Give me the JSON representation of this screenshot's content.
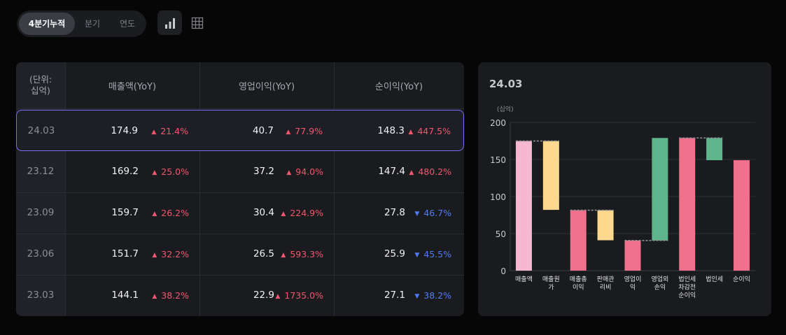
{
  "toolbar": {
    "tabs": [
      {
        "label": "4분기누적",
        "active": true
      },
      {
        "label": "분기",
        "active": false
      },
      {
        "label": "연도",
        "active": false
      }
    ],
    "view_icons": [
      {
        "name": "bar-chart-icon",
        "active": true
      },
      {
        "name": "table-grid-icon",
        "active": false
      }
    ]
  },
  "table": {
    "unit_header": [
      "(단위:",
      "십억)"
    ],
    "columns": [
      "매출액(YoY)",
      "영업이익(YoY)",
      "순이익(YoY)"
    ],
    "rows": [
      {
        "period": "24.03",
        "selected": true,
        "sales": "174.9",
        "sales_chg": "21.4%",
        "sales_dir": "up",
        "op": "40.7",
        "op_chg": "77.9%",
        "op_dir": "up",
        "net": "148.3",
        "net_chg": "447.5%",
        "net_dir": "up"
      },
      {
        "period": "23.12",
        "selected": false,
        "sales": "169.2",
        "sales_chg": "25.0%",
        "sales_dir": "up",
        "op": "37.2",
        "op_chg": "94.0%",
        "op_dir": "up",
        "net": "147.4",
        "net_chg": "480.2%",
        "net_dir": "up"
      },
      {
        "period": "23.09",
        "selected": false,
        "sales": "159.7",
        "sales_chg": "26.2%",
        "sales_dir": "up",
        "op": "30.4",
        "op_chg": "224.9%",
        "op_dir": "up",
        "net": "27.8",
        "net_chg": "46.7%",
        "net_dir": "down"
      },
      {
        "period": "23.06",
        "selected": false,
        "sales": "151.7",
        "sales_chg": "32.2%",
        "sales_dir": "up",
        "op": "26.5",
        "op_chg": "593.3%",
        "op_dir": "up",
        "net": "25.9",
        "net_chg": "45.5%",
        "net_dir": "down"
      },
      {
        "period": "23.03",
        "selected": false,
        "sales": "144.1",
        "sales_chg": "38.2%",
        "sales_dir": "up",
        "op": "22.9",
        "op_chg": "1735.0%",
        "op_dir": "up",
        "net": "27.1",
        "net_chg": "38.2%",
        "net_dir": "down"
      }
    ],
    "colors": {
      "up": "#f0586e",
      "down": "#4f7cf6",
      "selected_border": "#7a6df0"
    }
  },
  "chart_data": {
    "type": "bar",
    "title": "24.03",
    "ylabel": "(십억)",
    "ylim": [
      0,
      200
    ],
    "yticks": [
      0,
      50,
      100,
      150,
      200
    ],
    "grid": true,
    "categories": [
      [
        "매출액"
      ],
      [
        "매출원",
        "가"
      ],
      [
        "매출총",
        "이익"
      ],
      [
        "판매관",
        "리비"
      ],
      [
        "영업이",
        "익"
      ],
      [
        "영업외",
        "손익"
      ],
      [
        "법인세",
        "차감전",
        "순이익"
      ],
      [
        "법인세"
      ],
      [
        "순이익"
      ]
    ],
    "bars": [
      {
        "low": 0,
        "high": 174.9,
        "color": "#f5b8d0"
      },
      {
        "low": 82,
        "high": 174.9,
        "color": "#fcd98f"
      },
      {
        "low": 0,
        "high": 81.5,
        "color": "#f0708e"
      },
      {
        "low": 41,
        "high": 81.5,
        "color": "#fcd98f"
      },
      {
        "low": 0,
        "high": 40.7,
        "color": "#f0708e"
      },
      {
        "low": 40.7,
        "high": 179,
        "color": "#5fb58b"
      },
      {
        "low": 0,
        "high": 179,
        "color": "#f0708e"
      },
      {
        "low": 149,
        "high": 179,
        "color": "#5fb58b"
      },
      {
        "low": 0,
        "high": 149,
        "color": "#f0708e"
      }
    ],
    "connectors": [
      {
        "from": 0,
        "to": 1,
        "value": 174.9
      },
      {
        "from": 2,
        "to": 3,
        "value": 81.5
      },
      {
        "from": 4,
        "to": 5,
        "value": 40.7
      },
      {
        "from": 6,
        "to": 7,
        "value": 179
      }
    ]
  }
}
